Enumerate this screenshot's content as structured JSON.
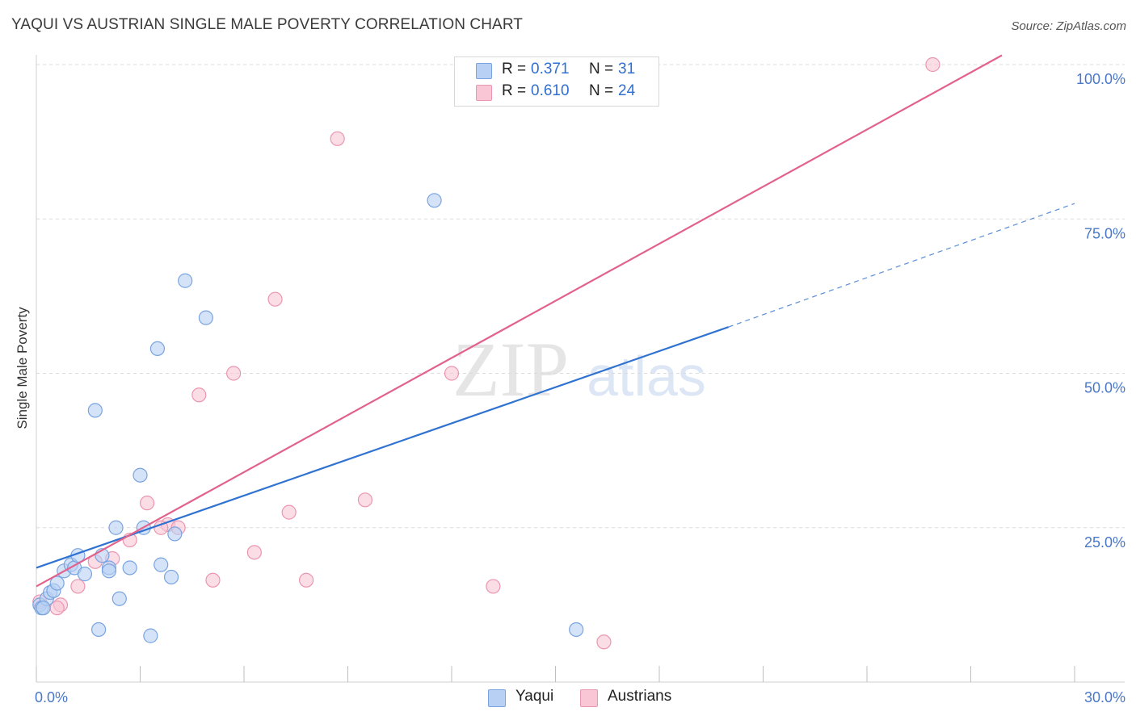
{
  "header": {
    "title": "YAQUI VS AUSTRIAN SINGLE MALE POVERTY CORRELATION CHART",
    "source": "Source: ZipAtlas.com"
  },
  "watermark": {
    "zip": "ZIP",
    "atlas": "atlas"
  },
  "legend_top": {
    "rows": [
      {
        "r_label": "R =",
        "r_value": "0.371",
        "n_label": "N =",
        "n_value": "31"
      },
      {
        "r_label": "R =",
        "r_value": "0.610",
        "n_label": "N =",
        "n_value": "24"
      }
    ]
  },
  "legend_bottom": {
    "items": [
      "Yaqui",
      "Austrians"
    ]
  },
  "colors": {
    "yaqui_fill": "#b7d0f3",
    "yaqui_stroke": "#7aa4e0",
    "yaqui_line": "#2f72d0",
    "austrians_fill": "#f8c6d5",
    "austrians_stroke": "#ec95b0",
    "austrians_line": "#e2628c",
    "grid": "#dcdcdc",
    "tick_text": "#4a78c8"
  },
  "chart_data": {
    "type": "scatter",
    "title": "YAQUI VS AUSTRIAN SINGLE MALE POVERTY CORRELATION CHART",
    "xlabel": "",
    "ylabel": "Single Male Poverty",
    "xlim": [
      0,
      30
    ],
    "ylim": [
      0,
      100
    ],
    "x_tick_labels": [
      "0.0%",
      "30.0%"
    ],
    "y_tick_labels": [
      "25.0%",
      "50.0%",
      "75.0%",
      "100.0%"
    ],
    "y_ticks": [
      25,
      50,
      75,
      100
    ],
    "grid": true,
    "series": [
      {
        "name": "Yaqui",
        "r": 0.371,
        "n": 31,
        "points": [
          [
            0.1,
            12.5
          ],
          [
            0.15,
            12.0
          ],
          [
            0.3,
            13.5
          ],
          [
            0.4,
            14.5
          ],
          [
            0.5,
            14.8
          ],
          [
            0.6,
            16.0
          ],
          [
            0.8,
            18.0
          ],
          [
            1.0,
            19.0
          ],
          [
            1.1,
            18.5
          ],
          [
            1.2,
            20.5
          ],
          [
            1.4,
            17.5
          ],
          [
            1.7,
            44.0
          ],
          [
            1.8,
            8.5
          ],
          [
            1.9,
            20.5
          ],
          [
            2.1,
            18.5
          ],
          [
            2.1,
            18.0
          ],
          [
            2.3,
            25.0
          ],
          [
            2.4,
            13.5
          ],
          [
            2.7,
            18.5
          ],
          [
            3.0,
            33.5
          ],
          [
            3.1,
            25.0
          ],
          [
            3.3,
            7.5
          ],
          [
            3.5,
            54.0
          ],
          [
            3.6,
            19.0
          ],
          [
            3.9,
            17.0
          ],
          [
            4.0,
            24.0
          ],
          [
            4.3,
            65.0
          ],
          [
            4.9,
            59.0
          ],
          [
            11.5,
            78.0
          ],
          [
            15.6,
            8.5
          ],
          [
            0.2,
            12.0
          ]
        ],
        "trend": {
          "x0": 0,
          "y0": 18.5,
          "x1": 20.0,
          "y1": 57.5,
          "dash_to_x": 30.0,
          "dash_to_y": 77.5
        }
      },
      {
        "name": "Austrians",
        "r": 0.61,
        "n": 24,
        "points": [
          [
            0.1,
            13.0
          ],
          [
            0.7,
            12.5
          ],
          [
            1.2,
            15.5
          ],
          [
            1.7,
            19.5
          ],
          [
            2.2,
            20.0
          ],
          [
            2.7,
            23.0
          ],
          [
            3.2,
            29.0
          ],
          [
            3.8,
            25.5
          ],
          [
            4.1,
            25.0
          ],
          [
            4.7,
            46.5
          ],
          [
            5.1,
            16.5
          ],
          [
            5.7,
            50.0
          ],
          [
            6.3,
            21.0
          ],
          [
            6.9,
            62.0
          ],
          [
            7.3,
            27.5
          ],
          [
            7.8,
            16.5
          ],
          [
            8.7,
            88.0
          ],
          [
            9.5,
            29.5
          ],
          [
            12.0,
            50.0
          ],
          [
            13.2,
            15.5
          ],
          [
            16.4,
            6.5
          ],
          [
            25.9,
            100.0
          ],
          [
            0.6,
            12.0
          ],
          [
            3.6,
            25.0
          ]
        ],
        "trend": {
          "x0": 0,
          "y0": 15.5,
          "x1": 27.9,
          "y1": 101.5
        }
      }
    ]
  }
}
